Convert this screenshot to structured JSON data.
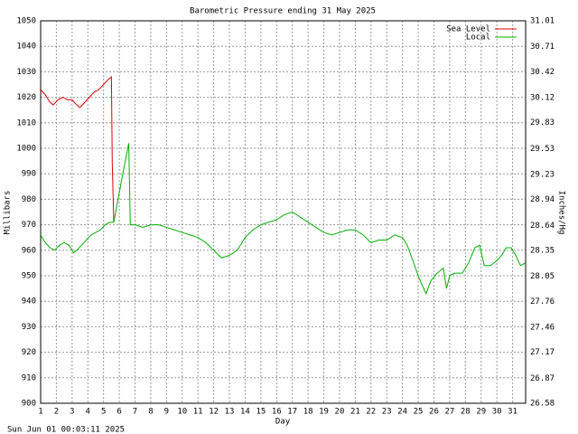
{
  "chart_data": {
    "type": "line",
    "title": "Barometric Pressure ending 31 May 2025",
    "x_label": "Day",
    "y_label": "Millibars",
    "y2_label": "Inches/Hg",
    "footer": "Sun Jun 01 00:03:11 2025",
    "grid": true,
    "legend": "top-right",
    "xlim": [
      1,
      32
    ],
    "xticks": [
      1,
      2,
      3,
      4,
      5,
      6,
      7,
      8,
      9,
      10,
      11,
      12,
      13,
      14,
      15,
      16,
      17,
      18,
      19,
      20,
      21,
      22,
      23,
      24,
      25,
      26,
      27,
      28,
      29,
      30,
      31
    ],
    "ylim": [
      900,
      1050
    ],
    "yticks": [
      900,
      910,
      920,
      930,
      940,
      950,
      960,
      970,
      980,
      990,
      1000,
      1010,
      1020,
      1030,
      1040,
      1050
    ],
    "y2lim": [
      26.58,
      31.01
    ],
    "y2ticks": [
      26.58,
      26.87,
      27.17,
      27.46,
      27.76,
      28.05,
      28.35,
      28.64,
      28.94,
      29.23,
      29.53,
      29.83,
      30.12,
      30.42,
      30.71,
      31.01
    ],
    "series": [
      {
        "name": "Sea Level",
        "color": "#e00000",
        "x": [
          1,
          1.3,
          1.6,
          1.8,
          2.1,
          2.4,
          2.7,
          3,
          3.3,
          3.5,
          3.8,
          4.1,
          4.4,
          4.7,
          5,
          5.3,
          5.5,
          5.55,
          5.65
        ],
        "values": [
          1023,
          1021,
          1018,
          1017,
          1019,
          1020,
          1019,
          1019,
          1017,
          1016,
          1018,
          1020,
          1022,
          1023,
          1025,
          1027,
          1028,
          995,
          971
        ]
      },
      {
        "name": "Local",
        "color": "#00b000",
        "x": [
          1,
          1.3,
          1.6,
          1.9,
          2.2,
          2.5,
          2.8,
          3.1,
          3.3,
          3.6,
          3.9,
          4.2,
          4.5,
          4.8,
          5.1,
          5.4,
          5.65,
          6.1,
          6.6,
          6.7,
          7,
          7.5,
          8,
          8.5,
          9,
          9.5,
          10,
          10.5,
          11,
          11.5,
          12,
          12.5,
          13,
          13.5,
          14,
          14.5,
          15,
          15.5,
          16,
          16.5,
          17,
          17.5,
          18,
          18.5,
          19,
          19.5,
          20,
          20.5,
          21,
          21.5,
          22,
          22.5,
          23,
          23.5,
          24,
          24.3,
          24.6,
          25,
          25.2,
          25.5,
          25.8,
          26.2,
          26.6,
          26.8,
          27,
          27.3,
          27.8,
          28.2,
          28.6,
          28.9,
          29.2,
          29.6,
          30,
          30.3,
          30.6,
          30.9,
          31.2,
          31.5,
          31.8
        ],
        "values": [
          966,
          963,
          961,
          960,
          962,
          963,
          962,
          959,
          960,
          962,
          964,
          966,
          967,
          968,
          970,
          971,
          971,
          986,
          1002,
          970,
          970,
          969,
          970,
          970,
          969,
          968,
          967,
          966,
          965,
          963,
          960,
          957,
          958,
          960,
          965,
          968,
          970,
          971,
          972,
          974,
          975,
          973,
          971,
          969,
          967,
          966,
          967,
          968,
          968,
          966,
          963,
          964,
          964,
          966,
          965,
          962,
          957,
          950,
          947,
          943,
          948,
          951,
          953,
          945,
          950,
          951,
          951,
          955,
          961,
          962,
          954,
          954,
          956,
          958,
          961,
          961,
          958,
          954,
          955
        ]
      }
    ]
  }
}
